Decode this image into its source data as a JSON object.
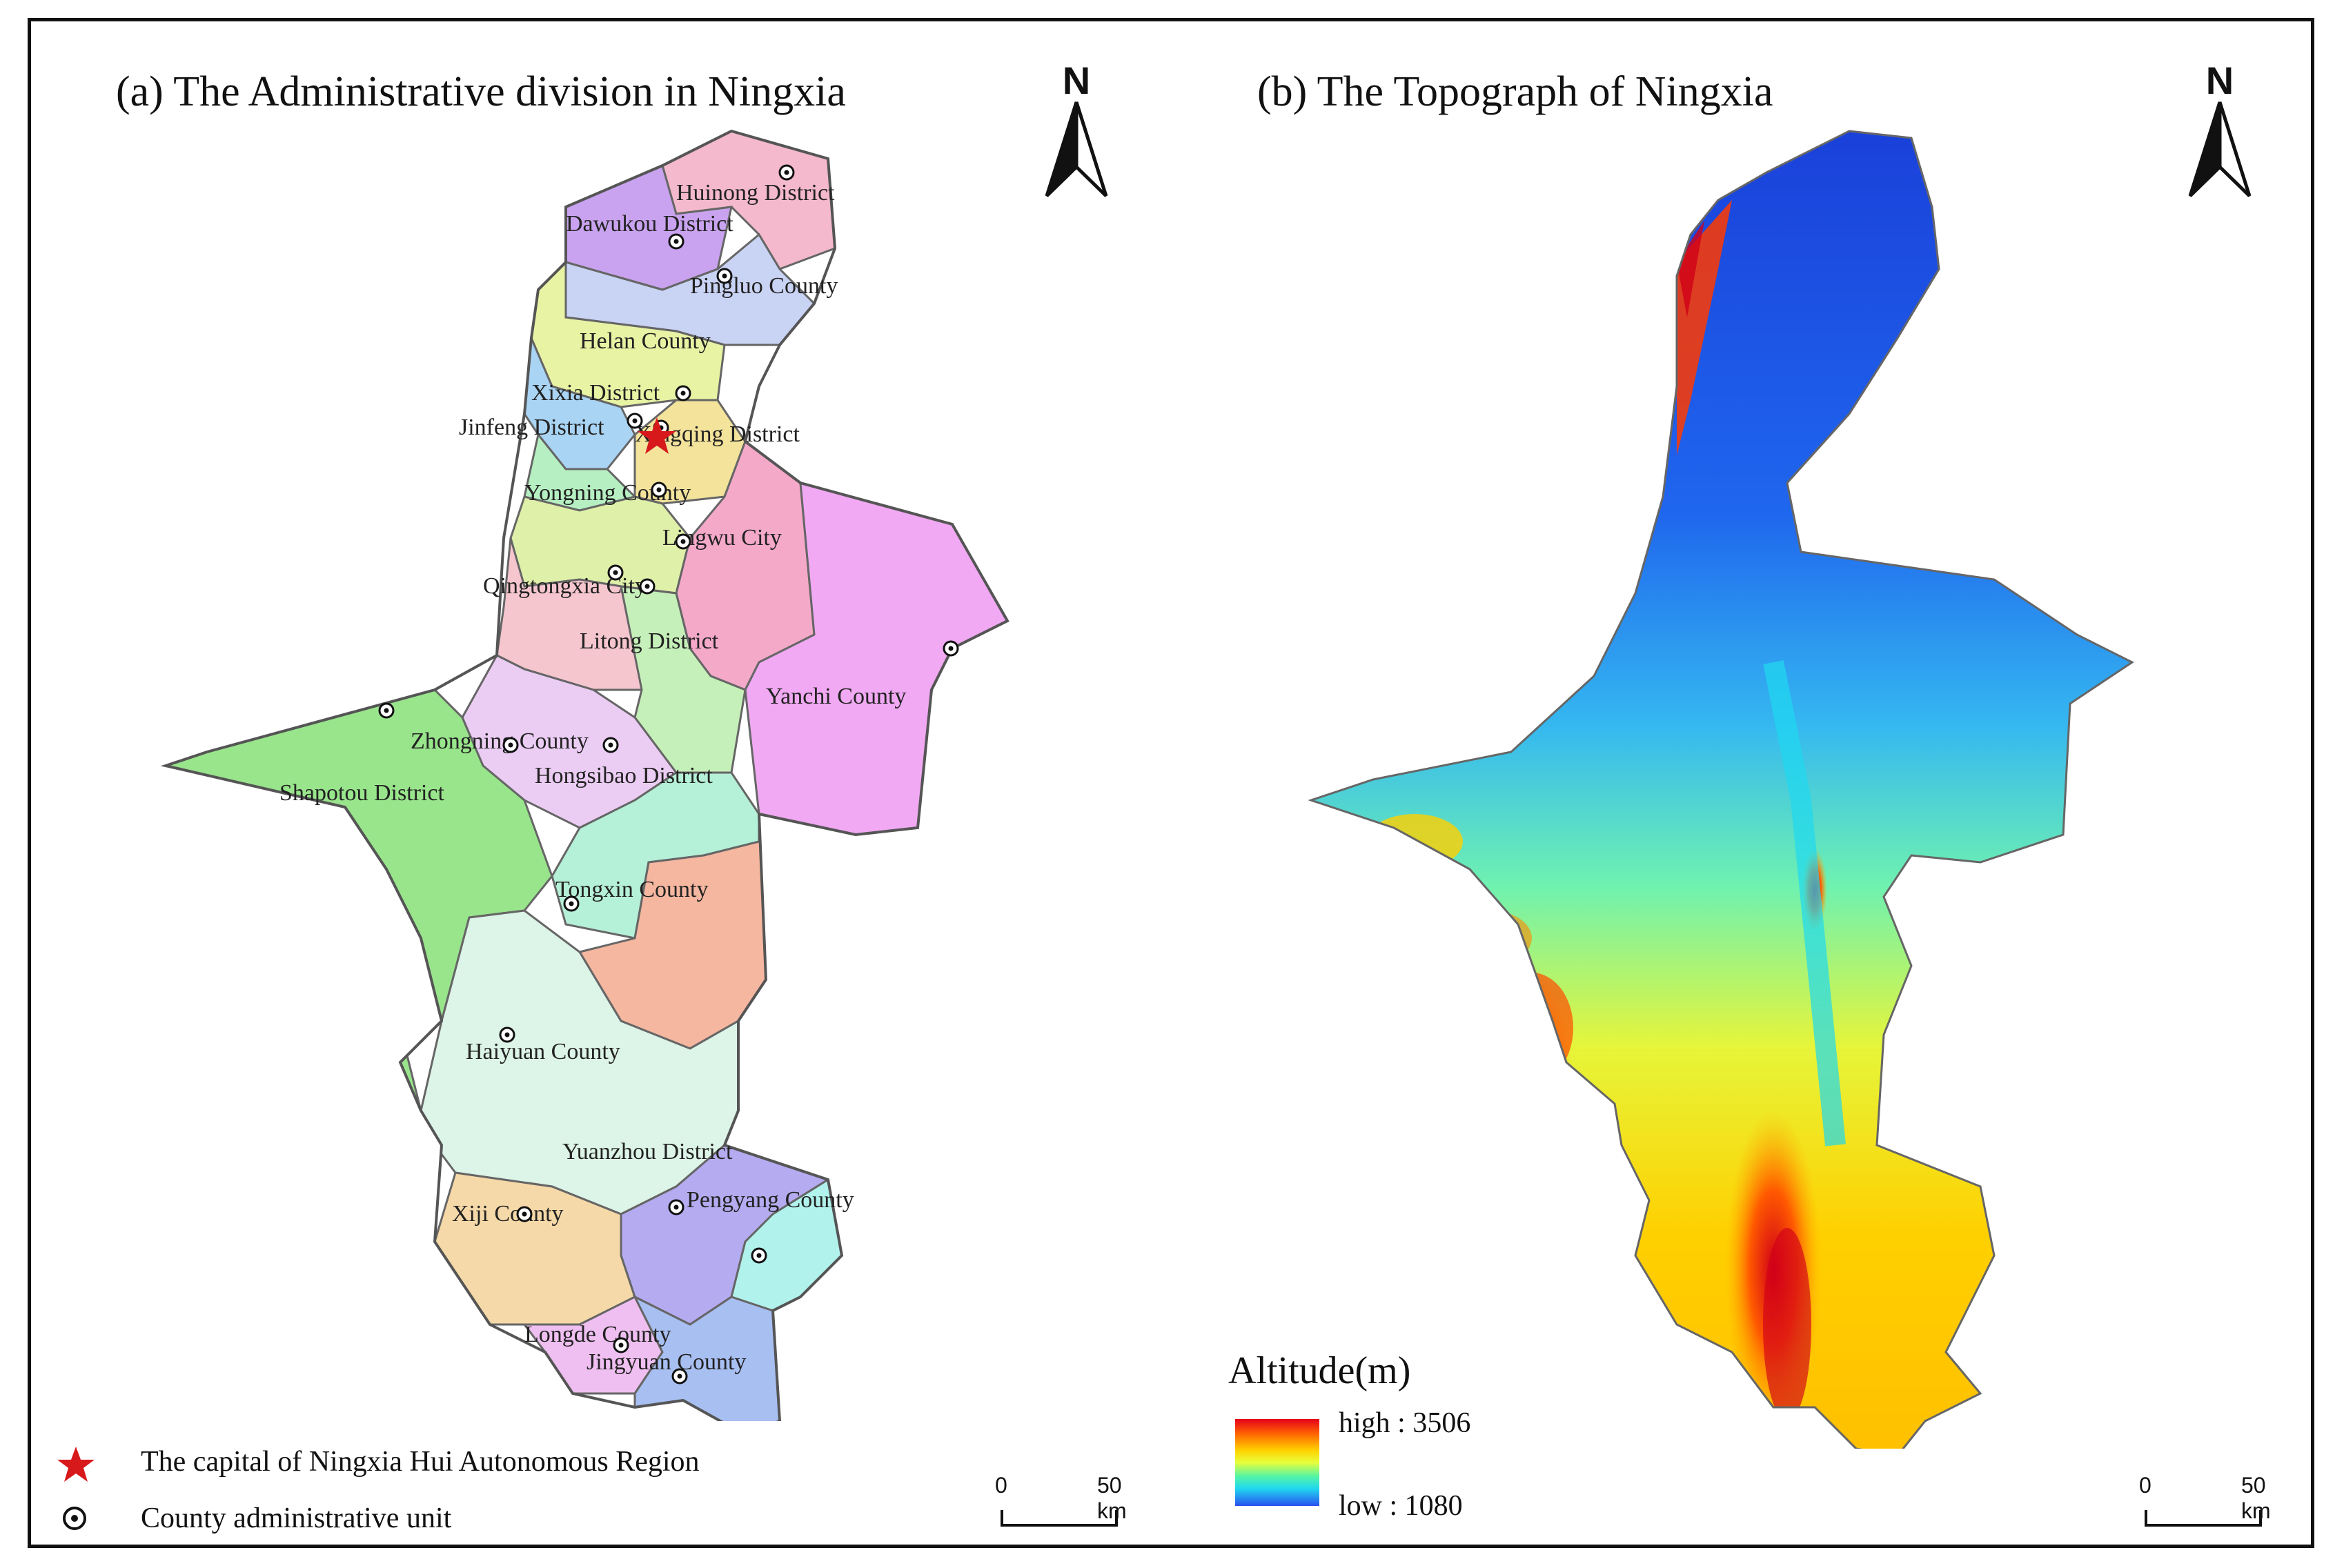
{
  "titles": {
    "a": "(a) The Administrative division in Ningxia",
    "b": "(b) The Topograph of Ningxia"
  },
  "north_arrow": {
    "label": "N"
  },
  "scale_bar": {
    "start": "0",
    "end": "50 km"
  },
  "altitude_legend": {
    "title": "Altitude(m)",
    "high": "high : 3506",
    "low": "low : 1080",
    "colors": [
      "#e6001a",
      "#ff6a00",
      "#ffd200",
      "#e8ff3a",
      "#54f5a5",
      "#1fd8f0",
      "#2a50f0"
    ]
  },
  "map_legend": {
    "capital": "The capital of Ningxia Hui Autonomous Region",
    "county_unit": "County administrative unit",
    "capital_color": "#d7191c"
  },
  "districts": [
    {
      "name": "Huinong District",
      "color": "#f4b9cc"
    },
    {
      "name": "Dawukou District",
      "color": "#c9a3ef"
    },
    {
      "name": "Pingluo County",
      "color": "#c9d3f4"
    },
    {
      "name": "Helan County",
      "color": "#e8f3a4"
    },
    {
      "name": "Xixia District",
      "color": "#a9d4f4"
    },
    {
      "name": "Jinfeng District",
      "color": "#b6f0c2"
    },
    {
      "name": "Xingqing District",
      "color": "#f3e39b"
    },
    {
      "name": "Yongning County",
      "color": "#dff0a9"
    },
    {
      "name": "Lingwu City",
      "color": "#f5a9c9"
    },
    {
      "name": "Qingtongxia City",
      "color": "#f6c6cf"
    },
    {
      "name": "Litong District",
      "color": "#c6f0b9"
    },
    {
      "name": "Yanchi County",
      "color": "#f0a9f2"
    },
    {
      "name": "Zhongning County",
      "color": "#ebcdf4"
    },
    {
      "name": "Hongsibao District",
      "color": "#b5f0d8"
    },
    {
      "name": "Shapotou District",
      "color": "#99e58c"
    },
    {
      "name": "Tongxin County",
      "color": "#f5b7a0"
    },
    {
      "name": "Haiyuan County",
      "color": "#ddf4e8"
    },
    {
      "name": "Yuanzhou District",
      "color": "#b4abf0"
    },
    {
      "name": "Pengyang County",
      "color": "#b1f2ec"
    },
    {
      "name": "Xiji County",
      "color": "#f6d9a8"
    },
    {
      "name": "Longde County",
      "color": "#eebff0"
    },
    {
      "name": "Jingyuan County",
      "color": "#a8bff2"
    }
  ]
}
